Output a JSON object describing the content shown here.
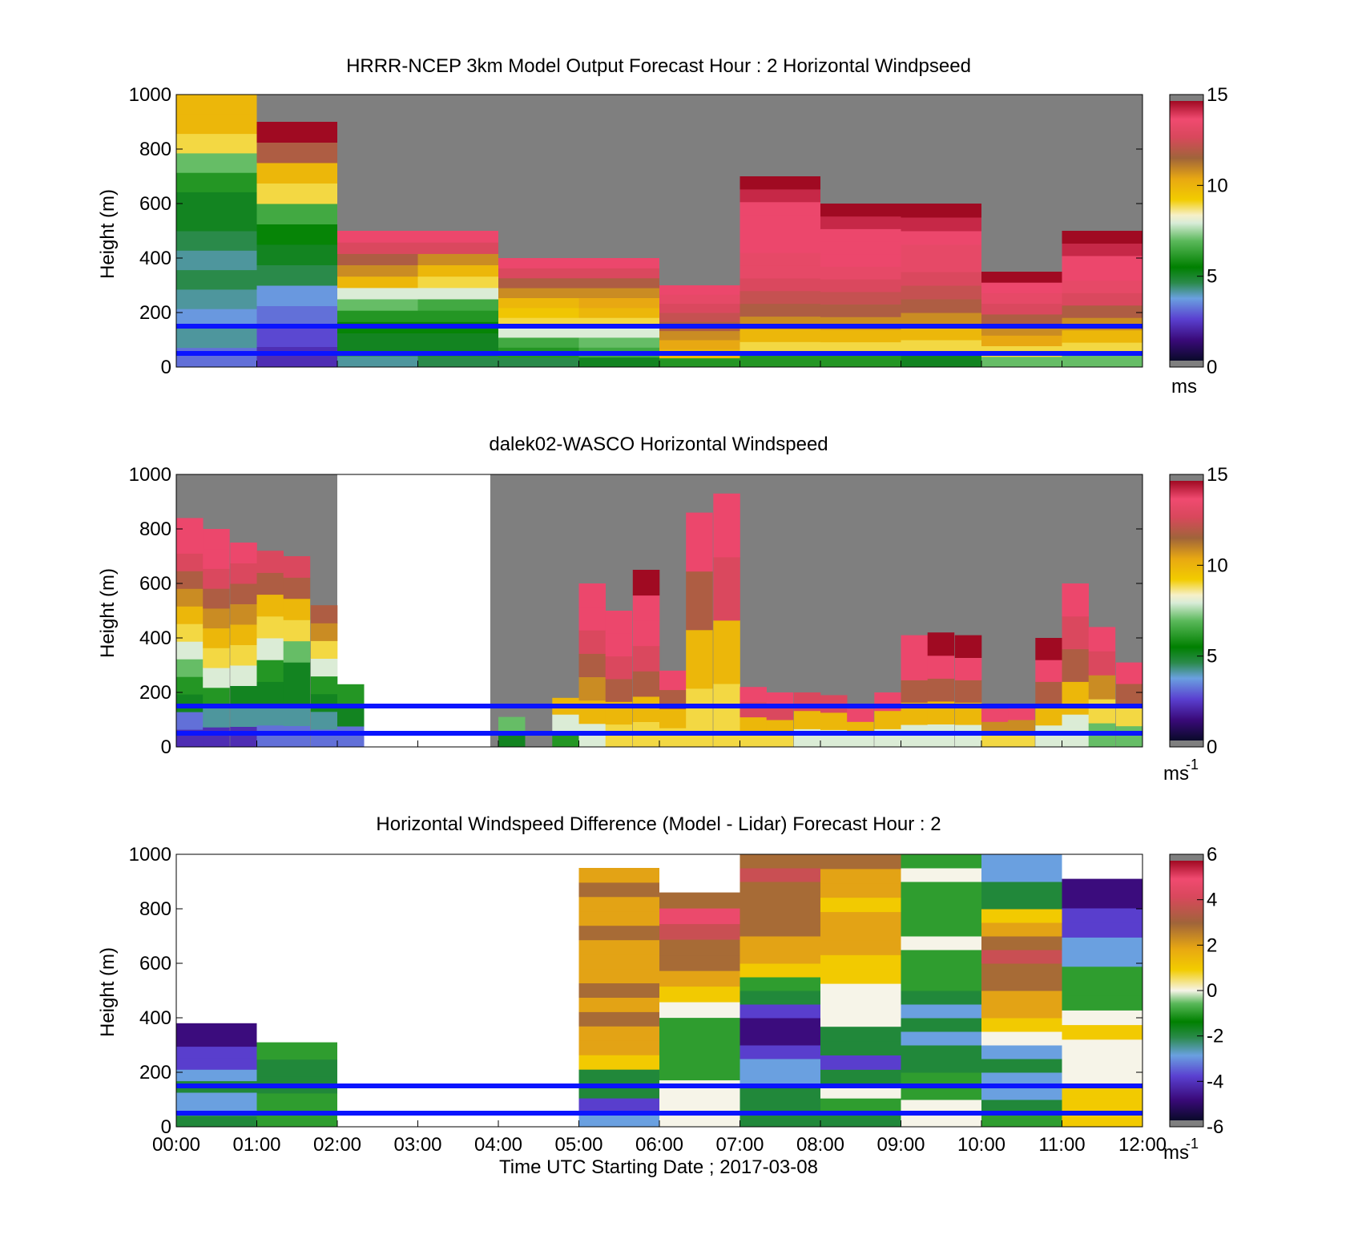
{
  "chart_data": [
    {
      "type": "heatmap",
      "title": "HRRR-NCEP 3km Model Output   Forecast Hour : 2 Horizontal Windpseed",
      "ylabel": "Height (m)",
      "xlabel": "",
      "ylim": [
        0,
        1000
      ],
      "xlim": [
        "00:00",
        "12:00"
      ],
      "yticks": [
        "0",
        "200",
        "400",
        "600",
        "800",
        "1000"
      ],
      "colorbar": {
        "ticks": [
          "0",
          "5",
          "10",
          "15"
        ],
        "range": [
          0,
          15
        ],
        "unit": "ms",
        "unit_sup": ""
      },
      "reference_lines_m": [
        50,
        150
      ],
      "columns": [
        {
          "t": 0,
          "top": 1000,
          "values": [
            3,
            4,
            3.5,
            4,
            4.5,
            4,
            4.5,
            5,
            5,
            6,
            7,
            9,
            10,
            10
          ]
        },
        {
          "t": 1,
          "top": 900,
          "values": [
            2,
            2.5,
            3,
            3.5,
            4.5,
            5,
            5.5,
            6.5,
            9,
            10,
            12,
            15
          ]
        },
        {
          "t": 2,
          "top": 500,
          "values": [
            4,
            5,
            5,
            5.5,
            6,
            7,
            8,
            10,
            11,
            12,
            13,
            14
          ]
        },
        {
          "t": 3,
          "top": 500,
          "values": [
            4.5,
            5,
            5,
            5.5,
            6,
            6.5,
            8,
            9,
            10,
            11,
            13,
            14
          ]
        },
        {
          "t": 4,
          "top": 400,
          "values": [
            4.5,
            6,
            6.5,
            8,
            9,
            9.5,
            10,
            11,
            12,
            13,
            14
          ]
        },
        {
          "t": 5,
          "top": 400,
          "values": [
            5,
            6.5,
            7,
            8,
            9,
            10,
            10.5,
            11,
            12,
            13,
            14
          ]
        },
        {
          "t": 6,
          "top": 300,
          "values": [
            6,
            10,
            10.5,
            11,
            12,
            12.5,
            13,
            13.5,
            14
          ]
        },
        {
          "t": 7,
          "top": 700,
          "values": [
            6,
            9,
            10,
            11,
            12,
            12.5,
            13,
            13.5,
            13.5,
            14,
            14,
            14,
            14,
            14.5,
            15
          ]
        },
        {
          "t": 8,
          "top": 600,
          "values": [
            6,
            9,
            10,
            11,
            12,
            12.5,
            13,
            13.5,
            14,
            14,
            14,
            14.5,
            15
          ]
        },
        {
          "t": 9,
          "top": 600,
          "values": [
            5,
            9,
            10,
            11,
            12,
            12.5,
            13,
            13.5,
            13.5,
            14,
            14.5,
            15
          ]
        },
        {
          "t": 10,
          "top": 350,
          "values": [
            7,
            9,
            10.5,
            11,
            12,
            13,
            13.5,
            14,
            15
          ]
        },
        {
          "t": 11,
          "top": 500,
          "values": [
            7,
            9,
            10,
            11,
            12,
            13,
            13.5,
            14,
            14,
            14.5,
            15
          ]
        }
      ]
    },
    {
      "type": "heatmap",
      "title": "dalek02-WASCO  Horizontal Windspeed",
      "ylabel": "Height (m)",
      "xlabel": "",
      "ylim": [
        0,
        1000
      ],
      "xlim": [
        "00:00",
        "12:00"
      ],
      "yticks": [
        "0",
        "200",
        "400",
        "600",
        "800",
        "1000"
      ],
      "colorbar": {
        "ticks": [
          "0",
          "5",
          "10",
          "15"
        ],
        "range": [
          0,
          15
        ],
        "unit": "ms",
        "unit_sup": "-1"
      },
      "reference_lines_m": [
        50,
        150
      ],
      "columns": [
        {
          "t": 0.0,
          "top": 840,
          "values": [
            2,
            3,
            5,
            6,
            7,
            8,
            9,
            10,
            11,
            12,
            13,
            14,
            14
          ]
        },
        {
          "t": 0.33,
          "top": 800,
          "values": [
            2,
            4,
            6,
            8,
            9,
            10,
            11,
            12,
            13,
            14,
            14
          ]
        },
        {
          "t": 0.67,
          "top": 750,
          "values": [
            2,
            4,
            5,
            8,
            9,
            10,
            11,
            12,
            13,
            14
          ]
        },
        {
          "t": 1.0,
          "top": 720,
          "values": [
            3,
            4,
            5,
            6,
            8,
            9,
            10,
            12,
            13
          ]
        },
        {
          "t": 1.33,
          "top": 700,
          "values": [
            3,
            4,
            5,
            5,
            7,
            9,
            10,
            12,
            13
          ]
        },
        {
          "t": 1.67,
          "top": 520,
          "values": [
            3,
            4,
            5,
            6,
            8,
            9,
            11,
            12
          ]
        },
        {
          "t": 2.0,
          "top": 230,
          "values": [
            3,
            5,
            6
          ]
        },
        {
          "t": 4.0,
          "top": 110,
          "values": [
            5,
            7
          ]
        },
        {
          "t": 4.67,
          "top": 180,
          "values": [
            6,
            8,
            10
          ]
        },
        {
          "t": 5.0,
          "top": 600,
          "values": [
            8,
            10,
            11,
            12,
            13,
            14,
            14
          ]
        },
        {
          "t": 5.33,
          "top": 500,
          "values": [
            9,
            10,
            12,
            13,
            14,
            14
          ]
        },
        {
          "t": 5.67,
          "top": 650,
          "values": [
            9,
            10,
            12,
            13,
            14,
            14,
            15
          ]
        },
        {
          "t": 6.0,
          "top": 280,
          "values": [
            9,
            10,
            12,
            14
          ]
        },
        {
          "t": 6.33,
          "top": 860,
          "values": [
            9,
            10,
            12,
            14
          ]
        },
        {
          "t": 6.67,
          "top": 930,
          "values": [
            9,
            10,
            13,
            14
          ]
        },
        {
          "t": 7.0,
          "top": 220,
          "values": [
            9,
            10,
            13,
            14
          ]
        },
        {
          "t": 7.33,
          "top": 200,
          "values": [
            9,
            10,
            13,
            14
          ]
        },
        {
          "t": 7.67,
          "top": 200,
          "values": [
            8,
            10,
            13
          ]
        },
        {
          "t": 8.0,
          "top": 190,
          "values": [
            8,
            10,
            13
          ]
        },
        {
          "t": 8.33,
          "top": 140,
          "values": [
            8,
            10,
            14
          ]
        },
        {
          "t": 8.67,
          "top": 200,
          "values": [
            8,
            10,
            14
          ]
        },
        {
          "t": 9.0,
          "top": 410,
          "values": [
            8,
            10,
            12,
            14,
            14
          ]
        },
        {
          "t": 9.33,
          "top": 420,
          "values": [
            8,
            10,
            12,
            14,
            15
          ]
        },
        {
          "t": 9.67,
          "top": 410,
          "values": [
            8,
            10,
            12,
            14,
            15
          ]
        },
        {
          "t": 10.0,
          "top": 140,
          "values": [
            9,
            11,
            14
          ]
        },
        {
          "t": 10.33,
          "top": 150,
          "values": [
            9,
            11,
            14
          ]
        },
        {
          "t": 10.67,
          "top": 400,
          "values": [
            8,
            10,
            12,
            14,
            15
          ]
        },
        {
          "t": 11.0,
          "top": 600,
          "values": [
            8,
            10,
            12,
            13,
            14
          ]
        },
        {
          "t": 11.33,
          "top": 440,
          "values": [
            7,
            9,
            11,
            13,
            14
          ]
        },
        {
          "t": 11.67,
          "top": 310,
          "values": [
            7,
            9,
            12,
            14
          ]
        }
      ]
    },
    {
      "type": "heatmap",
      "title": "Horizontal Windspeed Difference (Model - Lidar) Forecast Hour : 2",
      "ylabel": "Height (m)",
      "xlabel": "Time UTC  Starting Date ; 2017-03-08",
      "ylim": [
        0,
        1000
      ],
      "xlim": [
        "00:00",
        "12:00"
      ],
      "xticks": [
        "00:00",
        "01:00",
        "02:00",
        "03:00",
        "04:00",
        "05:00",
        "06:00",
        "07:00",
        "08:00",
        "09:00",
        "10:00",
        "11:00",
        "12:00"
      ],
      "yticks": [
        "0",
        "200",
        "400",
        "600",
        "800",
        "1000"
      ],
      "colorbar": {
        "ticks": [
          "-6",
          "-4",
          "-2",
          "0",
          "2",
          "4",
          "6"
        ],
        "range": [
          -6,
          6
        ],
        "unit": "ms",
        "unit_sup": "-1"
      },
      "reference_lines_m": [
        50,
        150
      ],
      "columns": [
        {
          "t": 0,
          "top": 380,
          "values": [
            -2,
            -3,
            -3,
            -2,
            -3,
            -4,
            -4,
            -5,
            -5
          ]
        },
        {
          "t": 1,
          "top": 310,
          "values": [
            -1,
            -1,
            -2,
            -2,
            -1
          ]
        },
        {
          "t": 5,
          "top": 950,
          "values": [
            -3,
            -4,
            -2,
            -2,
            1,
            2,
            2,
            3,
            2,
            3,
            2,
            2,
            2,
            3,
            2,
            2,
            3,
            2
          ]
        },
        {
          "t": 6,
          "top": 860,
          "values": [
            0,
            0,
            0,
            -1,
            -1,
            -1,
            -1,
            0,
            1,
            2,
            3,
            3,
            4,
            5,
            3
          ]
        },
        {
          "t": 7,
          "top": 1000,
          "values": [
            -2,
            -2,
            -2,
            -3,
            -3,
            -4,
            -5,
            -5,
            -4,
            -2,
            -1,
            1,
            2,
            2,
            3,
            3,
            3,
            3,
            4,
            3
          ]
        },
        {
          "t": 8,
          "top": 1000,
          "values": [
            -2,
            -1,
            0,
            -2,
            -4,
            -2,
            -2,
            0,
            0,
            0,
            1,
            1,
            2,
            2,
            2,
            1,
            2,
            2,
            3
          ]
        },
        {
          "t": 9,
          "top": 1000,
          "values": [
            0,
            0,
            -1,
            -1,
            -2,
            -2,
            -3,
            -2,
            -3,
            -2,
            -1,
            -1,
            -1,
            0,
            -1,
            -1,
            -1,
            -1,
            0,
            -1
          ]
        },
        {
          "t": 10,
          "top": 1000,
          "values": [
            -1,
            -2,
            -3,
            -3,
            -2,
            -3,
            0,
            1,
            2,
            2,
            3,
            3,
            4,
            3,
            2,
            1,
            -2,
            -2,
            -3,
            -3
          ]
        },
        {
          "t": 11,
          "top": 910,
          "values": [
            1,
            1,
            1,
            0,
            0,
            0,
            1,
            0,
            -1,
            -1,
            -1,
            -3,
            -3,
            -4,
            -4,
            -5,
            -5
          ]
        }
      ]
    }
  ]
}
